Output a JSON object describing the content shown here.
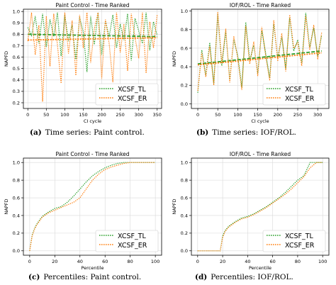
{
  "colors": {
    "tl": "#2ca02c",
    "er": "#ff7f0e"
  },
  "captions": [
    {
      "label": "(a)",
      "text": "Time series: Paint control."
    },
    {
      "label": "(b)",
      "text": "Time series: IOF/ROL."
    },
    {
      "label": "(c)",
      "text": "Percentiles: Paint control."
    },
    {
      "label": "(d)",
      "text": "Percentiles: IOF/ROL."
    }
  ],
  "chart_data": [
    {
      "type": "line",
      "title": "Paint Control - Time Ranked",
      "xlabel": "CI cycle",
      "ylabel": "NAPFD",
      "xlim": [
        -12,
        362
      ],
      "ylim": [
        0.15,
        1.02
      ],
      "xticks": [
        0,
        50,
        100,
        150,
        200,
        250,
        300,
        350
      ],
      "yticks": [
        0.2,
        0.3,
        0.4,
        0.5,
        0.6,
        0.7,
        0.8,
        0.9,
        1.0
      ],
      "grid": true,
      "legend": "lower-right",
      "x": [
        0,
        10,
        20,
        30,
        40,
        50,
        60,
        70,
        80,
        90,
        100,
        110,
        120,
        130,
        140,
        150,
        160,
        170,
        180,
        190,
        200,
        210,
        220,
        230,
        240,
        250,
        260,
        270,
        280,
        290,
        300,
        310,
        320,
        330,
        340,
        350
      ],
      "series": [
        {
          "name": "XCSF_TL",
          "values": [
            0.86,
            0.79,
            0.96,
            0.72,
            0.98,
            0.69,
            0.93,
            0.78,
            0.99,
            0.61,
            0.97,
            0.74,
            0.88,
            0.58,
            0.95,
            0.82,
            0.47,
            0.96,
            0.71,
            0.99,
            0.62,
            0.92,
            0.78,
            0.97,
            0.68,
            0.89,
            0.75,
            0.98,
            0.57,
            0.94,
            0.83,
            0.72,
            0.99,
            0.66,
            0.91,
            0.79
          ],
          "trend": [
            0.8,
            0.78
          ]
        },
        {
          "name": "XCSF_ER",
          "values": [
            0.74,
            0.99,
            0.62,
            0.88,
            0.21,
            0.96,
            0.52,
            0.98,
            0.71,
            0.37,
            0.99,
            0.63,
            0.92,
            0.44,
            0.97,
            0.68,
            0.99,
            0.55,
            0.85,
            0.99,
            0.41,
            0.93,
            0.72,
            0.38,
            0.99,
            0.64,
            0.89,
            0.48,
            0.98,
            0.77,
            0.59,
            0.99,
            0.46,
            0.91,
            0.68,
            0.97
          ],
          "trend": [
            0.75,
            0.77
          ]
        }
      ]
    },
    {
      "type": "line",
      "title": "IOF/ROL - Time Ranked",
      "xlabel": "CI cycle",
      "ylabel": "NAPFD",
      "xlim": [
        -16,
        328
      ],
      "ylim": [
        -0.05,
        1.02
      ],
      "xticks": [
        0,
        50,
        100,
        150,
        200,
        250,
        300
      ],
      "yticks": [
        0.0,
        0.2,
        0.4,
        0.6,
        0.8,
        1.0
      ],
      "grid": true,
      "legend": "lower-right",
      "x": [
        0,
        10,
        20,
        30,
        40,
        50,
        60,
        70,
        80,
        90,
        100,
        110,
        120,
        130,
        140,
        150,
        160,
        170,
        180,
        190,
        200,
        210,
        220,
        230,
        240,
        250,
        260,
        270,
        280,
        290,
        300,
        310
      ],
      "series": [
        {
          "name": "XCSF_TL",
          "values": [
            0.12,
            0.58,
            0.31,
            0.66,
            0.22,
            0.97,
            0.41,
            0.78,
            0.26,
            0.69,
            0.52,
            0.18,
            0.88,
            0.47,
            0.63,
            0.33,
            0.79,
            0.54,
            0.28,
            0.86,
            0.49,
            0.72,
            0.38,
            0.93,
            0.57,
            0.69,
            0.44,
            0.98,
            0.61,
            0.82,
            0.51,
            0.74
          ],
          "trend": [
            0.43,
            0.57
          ]
        },
        {
          "name": "XCSF_ER",
          "values": [
            0.14,
            0.55,
            0.29,
            0.62,
            0.2,
            0.99,
            0.44,
            0.81,
            0.23,
            0.73,
            0.49,
            0.15,
            0.84,
            0.43,
            0.67,
            0.3,
            0.83,
            0.51,
            0.25,
            0.9,
            0.46,
            0.76,
            0.35,
            0.96,
            0.6,
            0.66,
            0.41,
            0.95,
            0.58,
            0.85,
            0.48,
            0.77
          ],
          "trend": [
            0.42,
            0.55
          ]
        }
      ]
    },
    {
      "type": "line",
      "title": "Paint Control - Time Ranked",
      "xlabel": "Percentile",
      "ylabel": "NAPFD",
      "xlim": [
        -5,
        105
      ],
      "ylim": [
        -0.05,
        1.05
      ],
      "xticks": [
        0,
        20,
        40,
        60,
        80,
        100
      ],
      "yticks": [
        0.0,
        0.2,
        0.4,
        0.6,
        0.8,
        1.0
      ],
      "grid": true,
      "legend": "lower-right",
      "x": [
        0,
        2,
        4,
        6,
        8,
        10,
        15,
        20,
        25,
        30,
        35,
        40,
        45,
        50,
        55,
        60,
        65,
        70,
        75,
        80,
        85,
        90,
        95,
        100
      ],
      "series": [
        {
          "name": "XCSF_TL",
          "values": [
            0.0,
            0.18,
            0.26,
            0.31,
            0.35,
            0.39,
            0.44,
            0.48,
            0.5,
            0.55,
            0.62,
            0.7,
            0.78,
            0.85,
            0.9,
            0.94,
            0.97,
            0.99,
            1.0,
            1.0,
            1.0,
            1.0,
            1.0,
            1.0
          ]
        },
        {
          "name": "XCSF_ER",
          "values": [
            0.0,
            0.17,
            0.25,
            0.3,
            0.34,
            0.38,
            0.43,
            0.46,
            0.49,
            0.52,
            0.55,
            0.6,
            0.7,
            0.8,
            0.87,
            0.92,
            0.95,
            0.97,
            0.99,
            1.0,
            1.0,
            1.0,
            1.0,
            1.0
          ]
        }
      ]
    },
    {
      "type": "line",
      "title": "IOF/ROL - Time Ranked",
      "xlabel": "Percentile",
      "ylabel": "NAPFD",
      "xlim": [
        -5,
        105
      ],
      "ylim": [
        -0.05,
        1.05
      ],
      "xticks": [
        0,
        20,
        40,
        60,
        80,
        100
      ],
      "yticks": [
        0.0,
        0.2,
        0.4,
        0.6,
        0.8,
        1.0
      ],
      "grid": true,
      "legend": "lower-right",
      "x": [
        0,
        10,
        18,
        19,
        20,
        22,
        25,
        30,
        35,
        40,
        45,
        50,
        55,
        60,
        65,
        70,
        75,
        80,
        85,
        90,
        95,
        100
      ],
      "series": [
        {
          "name": "XCSF_TL",
          "values": [
            0.0,
            0.0,
            0.0,
            0.08,
            0.17,
            0.23,
            0.28,
            0.33,
            0.37,
            0.39,
            0.42,
            0.46,
            0.5,
            0.55,
            0.6,
            0.66,
            0.73,
            0.8,
            0.85,
            1.0,
            1.0,
            1.0
          ]
        },
        {
          "name": "XCSF_ER",
          "values": [
            0.0,
            0.0,
            0.0,
            0.07,
            0.15,
            0.22,
            0.27,
            0.32,
            0.36,
            0.38,
            0.41,
            0.45,
            0.49,
            0.54,
            0.59,
            0.64,
            0.7,
            0.77,
            0.84,
            0.94,
            1.0,
            1.0
          ]
        }
      ]
    }
  ]
}
